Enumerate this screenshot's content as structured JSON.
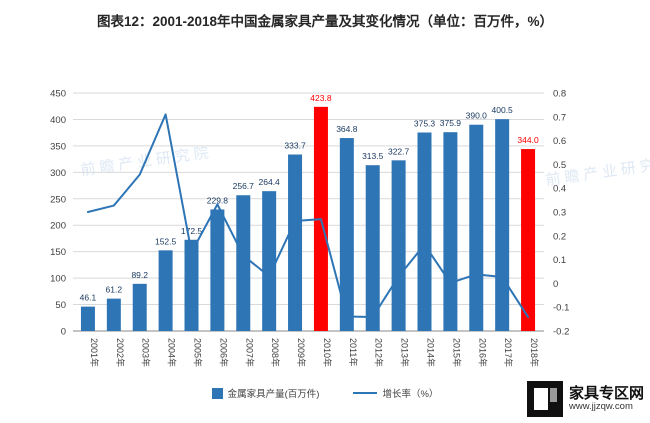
{
  "title": "图表12：2001-2018年中国金属家具产量及其变化情况（单位：百万件，%）",
  "watermark": "前瞻产业研究院",
  "brand": {
    "name": "家具专区网",
    "url": "www.jjzqw.com"
  },
  "legend": {
    "bar_label": "金属家具产量(百万件)",
    "line_label": "增长率（%）"
  },
  "colors": {
    "bar": "#2E75B6",
    "bar_highlight": "#FF0000",
    "line": "#2E75B6",
    "value_label": "#17375E",
    "value_label_highlight": "#FF0000",
    "grid": "#D9D9D9",
    "axis_line": "#898989",
    "axis_text": "#404040"
  },
  "chart_data": {
    "type": "bar+line",
    "title": "图表12：2001-2018年中国金属家具产量及其变化情况（单位：百万件，%）",
    "categories": [
      "2001年",
      "2002年",
      "2003年",
      "2004年",
      "2005年",
      "2006年",
      "2007年",
      "2008年",
      "2009年",
      "2010年",
      "2011年",
      "2012年",
      "2013年",
      "2014年",
      "2015年",
      "2016年",
      "2017年",
      "2018年"
    ],
    "series": [
      {
        "name": "金属家具产量(百万件)",
        "type": "bar",
        "values": [
          46.1,
          61.2,
          89.2,
          152.5,
          172.5,
          229.8,
          256.7,
          264.4,
          333.7,
          423.8,
          364.8,
          313.5,
          322.7,
          375.3,
          375.9,
          390.0,
          400.5,
          344.0
        ],
        "labels": [
          "46.1",
          "61.2",
          "89.2",
          "152.5",
          "172.5",
          "229.8",
          "256.7",
          "264.4",
          "333.7",
          "423.8",
          "364.8",
          "313.5",
          "322.7",
          "375.3",
          "375.9",
          "390.0",
          "400.5",
          "344.0"
        ],
        "highlight_indices": [
          9,
          17
        ]
      },
      {
        "name": "增长率（%）",
        "type": "line",
        "values": [
          0.3,
          0.327,
          0.457,
          0.71,
          0.131,
          0.332,
          0.117,
          0.03,
          0.262,
          0.27,
          -0.139,
          -0.141,
          0.029,
          0.163,
          0.002,
          0.038,
          0.027,
          -0.141
        ]
      }
    ],
    "left_axis": {
      "min": 0,
      "max": 450,
      "step": 50
    },
    "right_axis": {
      "min": -0.2,
      "max": 0.8,
      "step": 0.1
    },
    "grid": true,
    "legend_position": "bottom"
  }
}
